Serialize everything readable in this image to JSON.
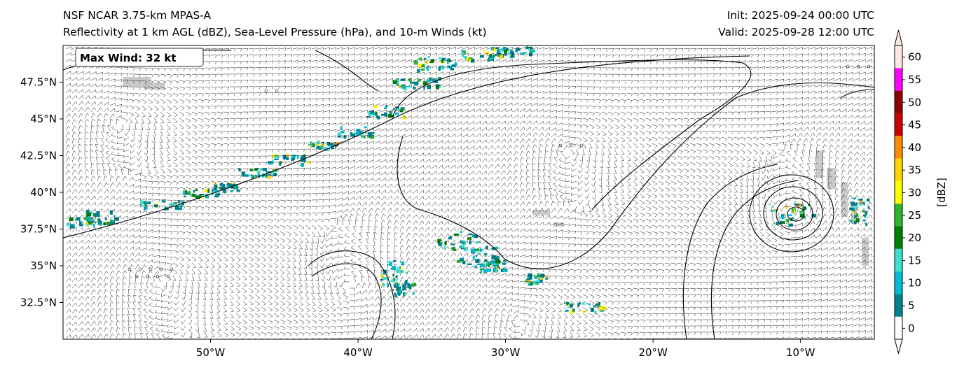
{
  "title": {
    "model": "NSF NCAR 3.75-km MPAS-A",
    "fields": "Reflectivity at 1 km AGL (dBZ), Sea-Level Pressure (hPa), and 10-m Winds (kt)",
    "init": "Init: 2025-09-24 00:00 UTC",
    "valid": "Valid: 2025-09-28 12:00 UTC"
  },
  "annotation": {
    "max_wind": "Max Wind: 32 kt"
  },
  "axes": {
    "lon_range": [
      -60,
      -5
    ],
    "lat_range": [
      30,
      50
    ],
    "lon_ticks": [
      {
        "value": -50,
        "label": "50°W"
      },
      {
        "value": -40,
        "label": "40°W"
      },
      {
        "value": -30,
        "label": "30°W"
      },
      {
        "value": -20,
        "label": "20°W"
      },
      {
        "value": -10,
        "label": "10°W"
      }
    ],
    "lat_ticks": [
      {
        "value": 47.5,
        "label": "47.5°N"
      },
      {
        "value": 45,
        "label": "45°N"
      },
      {
        "value": 42.5,
        "label": "42.5°N"
      },
      {
        "value": 40,
        "label": "40°N"
      },
      {
        "value": 37.5,
        "label": "37.5°N"
      },
      {
        "value": 35,
        "label": "35°N"
      },
      {
        "value": 32.5,
        "label": "32.5°N"
      }
    ]
  },
  "colorbar": {
    "title": "[dBZ]",
    "ticks": [
      "0",
      "5",
      "10",
      "15",
      "20",
      "25",
      "30",
      "35",
      "40",
      "45",
      "50",
      "55",
      "60"
    ],
    "colors": [
      "#ffffff",
      "#00838f",
      "#00bcd4",
      "#40e0d0",
      "#008000",
      "#2db52d",
      "#ffff00",
      "#ffd700",
      "#ff8c00",
      "#cc0000",
      "#8b0000",
      "#ff00ff",
      "#fde8e0"
    ],
    "extend": "both"
  },
  "colors": {
    "contour": "#000000",
    "barb": "#000000",
    "land": "#bdbdbd"
  }
}
